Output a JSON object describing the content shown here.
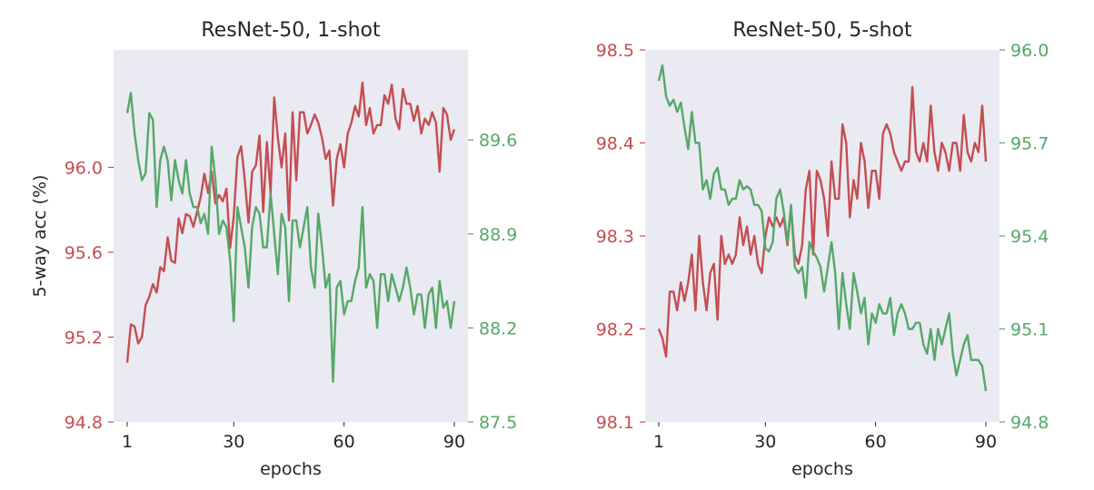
{
  "chart_data": [
    {
      "type": "line",
      "title": "ResNet-50, 1-shot",
      "xlabel": "epochs",
      "ylabel_left": "5-way acc (%)",
      "xlim": [
        1,
        90
      ],
      "xticks": [
        "1",
        "30",
        "60",
        "90"
      ],
      "ylim_left": [
        94.8,
        96.4
      ],
      "yticks_left": [
        "94.8",
        "95.2",
        "95.6",
        "96.0"
      ],
      "ylim_right": [
        87.5,
        90.0
      ],
      "yticks_right": [
        "87.5",
        "88.2",
        "88.9",
        "89.6"
      ],
      "grid": false,
      "colors": {
        "left": "#c44e52",
        "right": "#55a868"
      },
      "series": [
        {
          "axis": "left",
          "color": "#c44e52",
          "x": [
            1,
            2,
            3,
            4,
            5,
            6,
            7,
            8,
            9,
            10,
            11,
            12,
            13,
            14,
            15,
            16,
            17,
            18,
            19,
            20,
            21,
            22,
            23,
            24,
            25,
            26,
            27,
            28,
            29,
            30,
            31,
            32,
            33,
            34,
            35,
            36,
            37,
            38,
            39,
            40,
            41,
            42,
            43,
            44,
            45,
            46,
            47,
            48,
            49,
            50,
            51,
            52,
            53,
            54,
            55,
            56,
            57,
            58,
            59,
            60,
            61,
            62,
            63,
            64,
            65,
            66,
            67,
            68,
            69,
            70,
            71,
            72,
            73,
            74,
            75,
            76,
            77,
            78,
            79,
            80,
            81,
            82,
            83,
            84,
            85,
            86,
            87,
            88,
            89,
            90
          ],
          "values": [
            95.08,
            95.26,
            95.25,
            95.17,
            95.2,
            95.35,
            95.39,
            95.45,
            95.41,
            95.53,
            95.51,
            95.67,
            95.56,
            95.55,
            95.76,
            95.69,
            95.78,
            95.77,
            95.72,
            95.79,
            95.86,
            95.97,
            95.88,
            95.98,
            95.83,
            95.87,
            95.84,
            95.9,
            95.62,
            95.77,
            96.05,
            96.1,
            95.94,
            95.74,
            95.98,
            96.01,
            96.15,
            95.79,
            96.12,
            95.88,
            96.33,
            96.14,
            96.0,
            96.16,
            95.75,
            96.26,
            95.94,
            96.26,
            96.26,
            96.16,
            96.2,
            96.25,
            96.21,
            96.14,
            96.04,
            96.08,
            95.82,
            96.04,
            96.11,
            96.0,
            96.16,
            96.21,
            96.29,
            96.24,
            96.4,
            96.2,
            96.28,
            96.16,
            96.2,
            96.2,
            96.34,
            96.3,
            96.39,
            96.23,
            96.18,
            96.37,
            96.3,
            96.3,
            96.22,
            96.29,
            96.16,
            96.23,
            96.2,
            96.26,
            96.21,
            95.98,
            96.28,
            96.25,
            96.13,
            96.18
          ]
        },
        {
          "axis": "right",
          "color": "#55a868",
          "x": [
            1,
            2,
            3,
            4,
            5,
            6,
            7,
            8,
            9,
            10,
            11,
            12,
            13,
            14,
            15,
            16,
            17,
            18,
            19,
            20,
            21,
            22,
            23,
            24,
            25,
            26,
            27,
            28,
            29,
            30,
            31,
            32,
            33,
            34,
            35,
            36,
            37,
            38,
            39,
            40,
            41,
            42,
            43,
            44,
            45,
            46,
            47,
            48,
            49,
            50,
            51,
            52,
            53,
            54,
            55,
            56,
            57,
            58,
            59,
            60,
            61,
            62,
            63,
            64,
            65,
            66,
            67,
            68,
            69,
            70,
            71,
            72,
            73,
            74,
            75,
            76,
            77,
            78,
            79,
            80,
            81,
            82,
            83,
            84,
            85,
            86,
            87,
            88,
            89,
            90
          ],
          "values": [
            89.8,
            89.95,
            89.65,
            89.45,
            89.3,
            89.35,
            89.8,
            89.75,
            89.1,
            89.45,
            89.55,
            89.45,
            89.15,
            89.45,
            89.3,
            89.2,
            89.45,
            89.2,
            89.1,
            89.1,
            88.98,
            89.05,
            88.9,
            89.55,
            89.3,
            88.9,
            89.0,
            88.95,
            88.7,
            88.25,
            89.1,
            88.95,
            88.8,
            88.5,
            88.95,
            89.1,
            89.05,
            88.8,
            88.8,
            89.2,
            88.9,
            88.6,
            89.05,
            88.95,
            88.4,
            89.0,
            89.0,
            88.8,
            88.95,
            89.1,
            88.65,
            88.5,
            89.05,
            88.8,
            88.5,
            88.6,
            87.8,
            88.5,
            88.55,
            88.3,
            88.4,
            88.4,
            88.55,
            88.65,
            89.1,
            88.5,
            88.6,
            88.55,
            88.2,
            88.6,
            88.6,
            88.4,
            88.6,
            88.5,
            88.4,
            88.5,
            88.65,
            88.5,
            88.3,
            88.45,
            88.45,
            88.2,
            88.45,
            88.5,
            88.2,
            88.55,
            88.35,
            88.4,
            88.2,
            88.4
          ]
        }
      ]
    },
    {
      "type": "line",
      "title": "ResNet-50, 5-shot",
      "xlabel": "epochs",
      "xlim": [
        1,
        90
      ],
      "xticks": [
        "1",
        "30",
        "60",
        "90"
      ],
      "ylim_left": [
        98.1,
        98.5
      ],
      "yticks_left": [
        "98.1",
        "98.2",
        "98.3",
        "98.4",
        "98.5"
      ],
      "ylim_right": [
        94.8,
        96.0
      ],
      "yticks_right": [
        "94.8",
        "95.1",
        "95.4",
        "95.7",
        "96.0"
      ],
      "grid": false,
      "colors": {
        "left": "#c44e52",
        "right": "#55a868"
      },
      "series": [
        {
          "axis": "left",
          "color": "#c44e52",
          "x": [
            1,
            2,
            3,
            4,
            5,
            6,
            7,
            8,
            9,
            10,
            11,
            12,
            13,
            14,
            15,
            16,
            17,
            18,
            19,
            20,
            21,
            22,
            23,
            24,
            25,
            26,
            27,
            28,
            29,
            30,
            31,
            32,
            33,
            34,
            35,
            36,
            37,
            38,
            39,
            40,
            41,
            42,
            43,
            44,
            45,
            46,
            47,
            48,
            49,
            50,
            51,
            52,
            53,
            54,
            55,
            56,
            57,
            58,
            59,
            60,
            61,
            62,
            63,
            64,
            65,
            66,
            67,
            68,
            69,
            70,
            71,
            72,
            73,
            74,
            75,
            76,
            77,
            78,
            79,
            80,
            81,
            82,
            83,
            84,
            85,
            86,
            87,
            88,
            89,
            90
          ],
          "values": [
            98.2,
            98.19,
            98.17,
            98.24,
            98.24,
            98.22,
            98.25,
            98.23,
            98.25,
            98.28,
            98.22,
            98.3,
            98.25,
            98.22,
            98.26,
            98.27,
            98.21,
            98.3,
            98.27,
            98.28,
            98.27,
            98.28,
            98.32,
            98.29,
            98.31,
            98.28,
            98.3,
            98.27,
            98.26,
            98.3,
            98.32,
            98.31,
            98.32,
            98.31,
            98.32,
            98.29,
            98.33,
            98.28,
            98.27,
            98.29,
            98.35,
            98.37,
            98.28,
            98.37,
            98.36,
            98.34,
            98.3,
            98.38,
            98.34,
            98.34,
            98.42,
            98.4,
            98.32,
            98.36,
            98.34,
            98.4,
            98.38,
            98.33,
            98.37,
            98.37,
            98.34,
            98.41,
            98.42,
            98.41,
            98.39,
            98.38,
            98.37,
            98.38,
            98.38,
            98.46,
            98.39,
            98.38,
            98.4,
            98.38,
            98.44,
            98.39,
            98.37,
            98.4,
            98.39,
            98.37,
            98.4,
            98.4,
            98.37,
            98.43,
            98.39,
            98.38,
            98.4,
            98.39,
            98.44,
            98.38
          ]
        },
        {
          "axis": "right",
          "color": "#55a868",
          "x": [
            1,
            2,
            3,
            4,
            5,
            6,
            7,
            8,
            9,
            10,
            11,
            12,
            13,
            14,
            15,
            16,
            17,
            18,
            19,
            20,
            21,
            22,
            23,
            24,
            25,
            26,
            27,
            28,
            29,
            30,
            31,
            32,
            33,
            34,
            35,
            36,
            37,
            38,
            39,
            40,
            41,
            42,
            43,
            44,
            45,
            46,
            47,
            48,
            49,
            50,
            51,
            52,
            53,
            54,
            55,
            56,
            57,
            58,
            59,
            60,
            61,
            62,
            63,
            64,
            65,
            66,
            67,
            68,
            69,
            70,
            71,
            72,
            73,
            74,
            75,
            76,
            77,
            78,
            79,
            80,
            81,
            82,
            83,
            84,
            85,
            86,
            87,
            88,
            89,
            90
          ],
          "values": [
            95.9,
            95.95,
            95.85,
            95.82,
            95.84,
            95.8,
            95.83,
            95.75,
            95.68,
            95.8,
            95.7,
            95.7,
            95.55,
            95.58,
            95.52,
            95.6,
            95.62,
            95.55,
            95.55,
            95.5,
            95.52,
            95.52,
            95.58,
            95.55,
            95.56,
            95.55,
            95.5,
            95.5,
            95.48,
            95.36,
            95.35,
            95.38,
            95.52,
            95.55,
            95.48,
            95.38,
            95.5,
            95.3,
            95.28,
            95.3,
            95.2,
            95.38,
            95.35,
            95.33,
            95.3,
            95.22,
            95.3,
            95.38,
            95.28,
            95.1,
            95.28,
            95.18,
            95.1,
            95.28,
            95.22,
            95.15,
            95.2,
            95.05,
            95.15,
            95.12,
            95.18,
            95.15,
            95.15,
            95.2,
            95.08,
            95.15,
            95.18,
            95.15,
            95.1,
            95.1,
            95.12,
            95.12,
            95.05,
            95.02,
            95.1,
            95.0,
            95.1,
            95.05,
            95.1,
            95.15,
            95.02,
            94.95,
            95.0,
            95.05,
            95.08,
            95.0,
            95.0,
            95.0,
            94.98,
            94.9
          ]
        }
      ]
    }
  ]
}
